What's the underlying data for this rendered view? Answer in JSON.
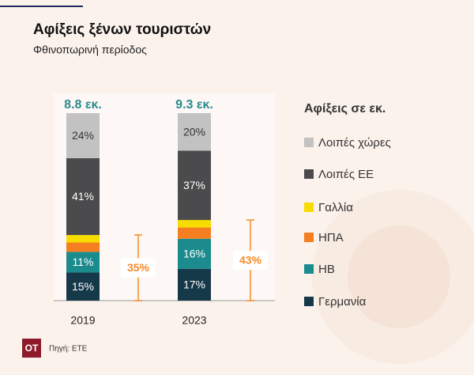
{
  "chart_data": {
    "type": "stacked_bar",
    "title": "Αφίξεις ξένων τουριστών",
    "subtitle": "Φθινοπωρινή περίοδος",
    "legend_title": "Αφίξεις σε εκ.",
    "categories": [
      "2019",
      "2023"
    ],
    "totals": [
      {
        "value": 8.8,
        "label": "8.8 εκ."
      },
      {
        "value": 9.3,
        "label": "9.3 εκ."
      }
    ],
    "ylim": [
      0,
      100
    ],
    "series": [
      {
        "name": "Γερμανία",
        "color": "#16394a",
        "values": [
          15,
          17
        ],
        "value_labels": [
          "15%",
          "17%"
        ]
      },
      {
        "name": "ΗΒ",
        "color": "#1b8b8e",
        "values": [
          11,
          16
        ],
        "value_labels": [
          "11%",
          "16%"
        ]
      },
      {
        "name": "ΗΠΑ",
        "color": "#f57f20",
        "values": [
          5,
          6
        ],
        "value_labels": [
          null,
          null
        ]
      },
      {
        "name": "Γαλλία",
        "color": "#f7dc00",
        "values": [
          4,
          4
        ],
        "value_labels": [
          null,
          null
        ]
      },
      {
        "name": "Λοιπές ΕΕ",
        "color": "#4b4b4d",
        "values": [
          41,
          37
        ],
        "value_labels": [
          "41%",
          "37%"
        ]
      },
      {
        "name": "Λοιπές χώρες",
        "color": "#c2c2c2",
        "values": [
          24,
          20
        ],
        "value_labels": [
          "24%",
          "20%"
        ]
      }
    ],
    "annotations": [
      {
        "value": 35,
        "label": "35%",
        "color": "#f58a2a"
      },
      {
        "value": 43,
        "label": "43%",
        "color": "#f58a2a"
      }
    ],
    "source": "Πηγή: ΕΤΕ",
    "logo": "OT"
  }
}
